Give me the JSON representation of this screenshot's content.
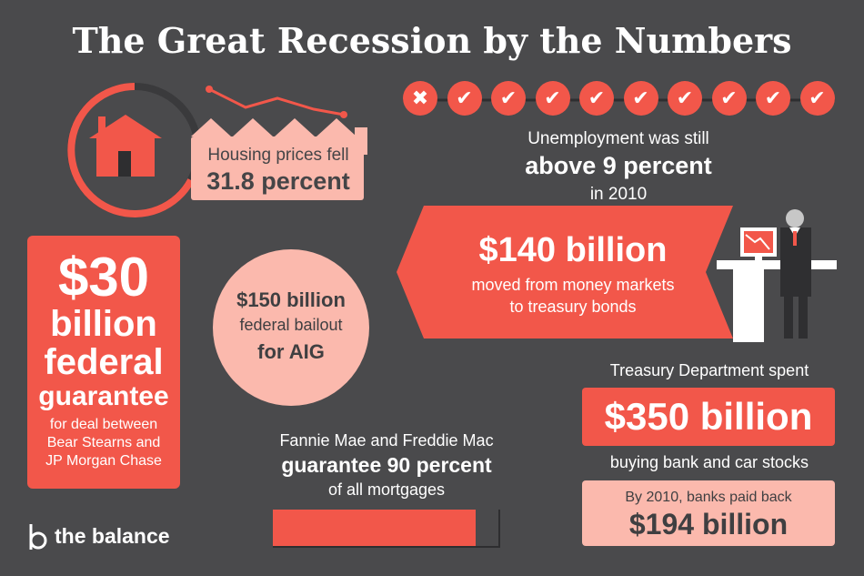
{
  "title": "The Great Recession by the Numbers",
  "housing": {
    "line1": "Housing prices fell",
    "line2": "31.8 percent"
  },
  "unemployment": {
    "line1": "Unemployment was still",
    "line2": "above 9 percent",
    "line3": "in 2010",
    "indicators": [
      "x",
      "check",
      "check",
      "check",
      "check",
      "check",
      "check",
      "check",
      "check",
      "check"
    ]
  },
  "money_markets": {
    "amount": "$140 billion",
    "line1": "moved from money markets",
    "line2": "to treasury bonds"
  },
  "bear_stearns": {
    "amount": "$30",
    "word1": "billion",
    "word2": "federal",
    "word3": "guarantee",
    "desc1": "for deal between",
    "desc2": "Bear Stearns and",
    "desc3": "JP Morgan Chase"
  },
  "aig": {
    "line1": "$150 billion",
    "line2": "federal bailout",
    "line3": "for AIG"
  },
  "fannie": {
    "line1": "Fannie Mae and Freddie Mac",
    "line2": "guarantee 90 percent",
    "line3": "of all mortgages",
    "bar_fraction": 0.9
  },
  "treasury": {
    "label": "Treasury Department spent",
    "amount": "$350 billion",
    "sub": "buying bank and car stocks",
    "payback_line1": "By 2010, banks paid back",
    "payback_amount": "$194 billion"
  },
  "logo": {
    "text": "the balance"
  },
  "colors": {
    "background": "#4a4a4c",
    "accent": "#f2574a",
    "light": "#fbb9ad"
  }
}
